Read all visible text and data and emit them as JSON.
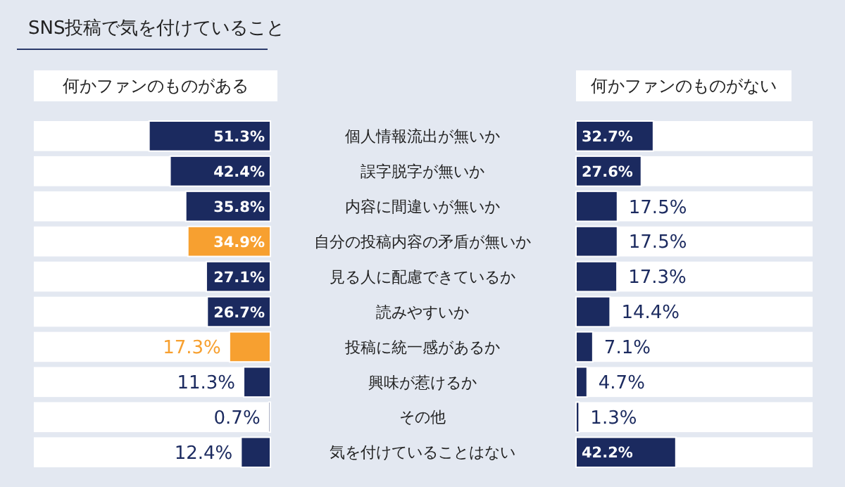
{
  "chart_data": [
    {
      "type": "bar",
      "orientation": "horizontal",
      "title": "SNS投稿で気を付けていること",
      "subtitle": "何かファンのものがある",
      "categories": [
        "個人情報流出が無いか",
        "誤字脱字が無いか",
        "内容に間違いが無いか",
        "自分の投稿内容の矛盾が無いか",
        "見る人に配慮できているか",
        "読みやすいか",
        "投稿に統一感があるか",
        "興味が惹けるか",
        "その他",
        "気を付けていることはない"
      ],
      "values": [
        51.3,
        42.4,
        35.8,
        34.9,
        27.1,
        26.7,
        17.3,
        11.3,
        0.7,
        12.4
      ],
      "colors": [
        "#1b2a5f",
        "#1b2a5f",
        "#1b2a5f",
        "#f7a030",
        "#1b2a5f",
        "#1b2a5f",
        "#f7a030",
        "#1b2a5f",
        "#1b2a5f",
        "#1b2a5f"
      ],
      "value_labels": [
        "51.3%",
        "42.4%",
        "35.8%",
        "34.9%",
        "27.1%",
        "26.7%",
        "17.3%",
        "11.3%",
        "0.7%",
        "12.4%"
      ],
      "xlim": [
        100,
        0
      ]
    },
    {
      "type": "bar",
      "orientation": "horizontal",
      "subtitle": "何かファンのものがない",
      "categories": [
        null,
        null,
        null,
        null,
        null,
        null,
        null,
        null,
        null,
        null
      ],
      "values": [
        32.7,
        27.6,
        17.5,
        17.5,
        17.3,
        14.4,
        7.1,
        4.7,
        1.3,
        42.2
      ],
      "colors": [
        "#1b2a5f",
        "#1b2a5f",
        "#1b2a5f",
        "#1b2a5f",
        "#1b2a5f",
        "#1b2a5f",
        "#1b2a5f",
        "#1b2a5f",
        "#1b2a5f",
        "#1b2a5f"
      ],
      "value_labels": [
        "32.7%",
        "27.6%",
        "17.5%",
        "17.5%",
        "17.3%",
        "14.4%",
        "7.1%",
        "4.7%",
        "1.3%",
        "42.2%"
      ],
      "xlim": [
        0,
        100
      ]
    }
  ]
}
